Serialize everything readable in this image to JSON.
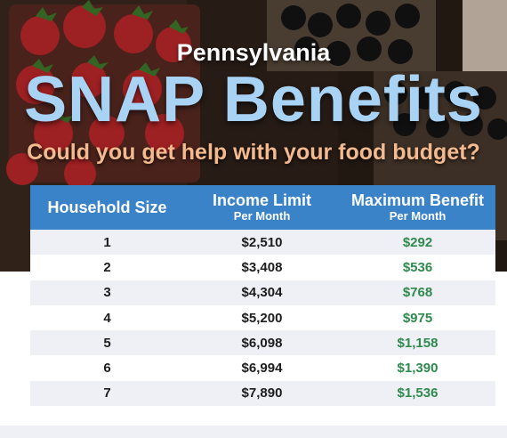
{
  "header": {
    "state": "Pennsylvania",
    "title": "SNAP Benefits",
    "subtitle": "Could you get help with your food budget?"
  },
  "table": {
    "columns": [
      {
        "label": "Household Size",
        "sublabel": ""
      },
      {
        "label": "Income Limit",
        "sublabel": "Per Month"
      },
      {
        "label": "Maximum Benefit",
        "sublabel": "Per Month"
      }
    ],
    "rows": [
      {
        "size": "1",
        "income": "$2,510",
        "benefit": "$292"
      },
      {
        "size": "2",
        "income": "$3,408",
        "benefit": "$536"
      },
      {
        "size": "3",
        "income": "$4,304",
        "benefit": "$768"
      },
      {
        "size": "4",
        "income": "$5,200",
        "benefit": "$975"
      },
      {
        "size": "5",
        "income": "$6,098",
        "benefit": "$1,158"
      },
      {
        "size": "6",
        "income": "$6,994",
        "benefit": "$1,390"
      },
      {
        "size": "7",
        "income": "$7,890",
        "benefit": "$1,536"
      }
    ]
  },
  "colors": {
    "header_blue": "#3a83c8",
    "title_blue": "#a9d3f5",
    "subtitle_orange": "#f3b98f",
    "benefit_green": "#2e8a4c"
  },
  "icons": [
    "strawberry-basket-image",
    "blackberry-basket-image"
  ]
}
